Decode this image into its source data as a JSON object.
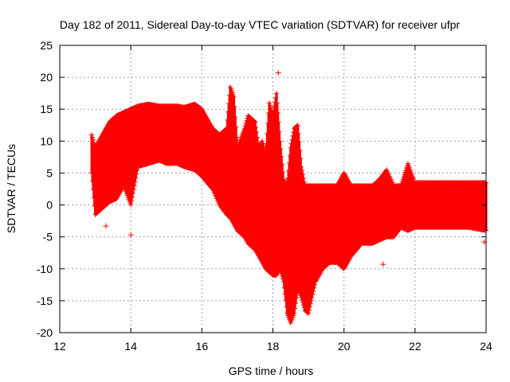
{
  "chart_data": {
    "type": "scatter",
    "title": "Day 182 of 2011, Sidereal Day-to-day VTEC variation (SDTVAR) for receiver ufpr",
    "xlabel": "GPS time / hours",
    "ylabel": "SDTVAR / TECUs",
    "xlim": [
      12,
      24
    ],
    "ylim": [
      -20,
      25
    ],
    "xticks": [
      12,
      14,
      16,
      18,
      20,
      22,
      24
    ],
    "yticks": [
      -20,
      -15,
      -10,
      -5,
      0,
      5,
      10,
      15,
      20,
      25
    ],
    "grid": true,
    "marker": "+",
    "color": "#ff0000",
    "envelope": {
      "x": [
        12.9,
        13.0,
        13.4,
        13.6,
        13.8,
        14.0,
        14.2,
        14.5,
        14.8,
        15.0,
        15.3,
        15.5,
        15.8,
        16.0,
        16.3,
        16.5,
        16.7,
        16.8,
        16.9,
        17.0,
        17.2,
        17.3,
        17.5,
        17.6,
        17.7,
        17.8,
        17.9,
        18.0,
        18.1,
        18.2,
        18.3,
        18.4,
        18.5,
        18.6,
        18.7,
        18.8,
        18.9,
        19.0,
        19.1,
        19.2,
        19.4,
        19.6,
        19.8,
        20.0,
        20.2,
        20.5,
        20.8,
        21.0,
        21.2,
        21.4,
        21.6,
        21.8,
        22.0,
        22.5,
        23.0,
        23.5,
        24.0
      ],
      "upper": [
        11.0,
        9.0,
        13.0,
        14.0,
        14.5,
        15.0,
        15.5,
        15.8,
        15.5,
        15.5,
        15.5,
        15.3,
        15.8,
        15.0,
        12.0,
        11.0,
        12.0,
        18.5,
        17.0,
        9.0,
        12.0,
        14.0,
        13.0,
        9.0,
        10.0,
        8.0,
        16.0,
        14.0,
        17.5,
        10.0,
        4.0,
        3.0,
        9.0,
        12.0,
        12.5,
        6.0,
        3.0,
        3.0,
        3.0,
        3.0,
        3.0,
        3.0,
        3.0,
        5.0,
        3.0,
        3.0,
        3.0,
        4.0,
        5.5,
        3.0,
        3.0,
        6.5,
        3.5,
        3.5,
        3.5,
        3.5,
        3.5
      ],
      "lower": [
        5.0,
        -1.5,
        0.5,
        1.0,
        3.0,
        0.0,
        6.0,
        6.5,
        7.0,
        6.5,
        6.5,
        6.0,
        5.5,
        4.5,
        2.5,
        0.0,
        -1.5,
        -2.0,
        -3.0,
        -4.0,
        -5.0,
        -6.0,
        -7.0,
        -8.0,
        -9.0,
        -10.0,
        -10.5,
        -11.0,
        -11.0,
        -10.0,
        -12.0,
        -17.0,
        -18.5,
        -17.0,
        -13.0,
        -14.5,
        -16.5,
        -17.0,
        -14.5,
        -12.0,
        -10.0,
        -9.0,
        -9.0,
        -10.0,
        -8.0,
        -6.0,
        -6.0,
        -5.5,
        -5.0,
        -5.0,
        -3.5,
        -4.0,
        -3.5,
        -3.5,
        -3.5,
        -3.5,
        -4.0
      ]
    },
    "outliers": [
      {
        "x": 13.3,
        "y": -3.3
      },
      {
        "x": 14.0,
        "y": -4.7
      },
      {
        "x": 18.15,
        "y": 20.7
      },
      {
        "x": 21.1,
        "y": -9.3
      },
      {
        "x": 23.95,
        "y": -5.8
      }
    ]
  }
}
